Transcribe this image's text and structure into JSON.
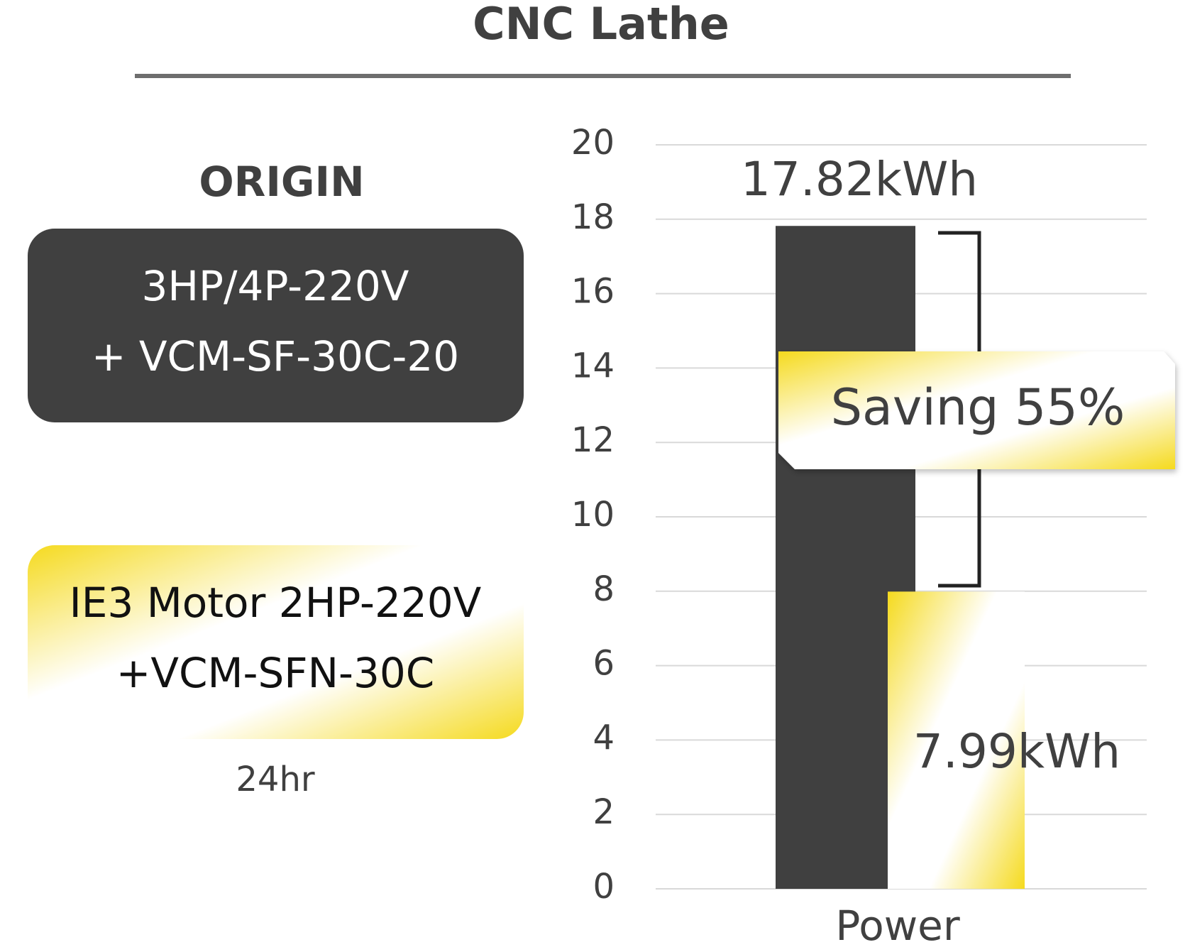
{
  "chart_data": {
    "type": "bar",
    "title": "CNC Lathe",
    "legend_title": "ORIGIN",
    "note": "24hr",
    "annotation": "Saving 55%",
    "categories": [
      "Power"
    ],
    "series": [
      {
        "name": [
          "3HP/4P-220V",
          "+ VCM-SF-30C-20"
        ],
        "color": "#404040",
        "values": [
          17.82
        ],
        "value_labels": [
          "17.82kWh"
        ]
      },
      {
        "name": [
          "IE3 Motor 2HP-220V",
          "+VCM-SFN-30C"
        ],
        "color": "#f5da1e",
        "values": [
          7.99
        ],
        "value_labels": [
          "7.99kWh"
        ]
      }
    ],
    "ylim": [
      0,
      20
    ],
    "yticks": [
      0,
      2,
      4,
      6,
      8,
      10,
      12,
      14,
      16,
      18,
      20
    ],
    "grid": true
  }
}
